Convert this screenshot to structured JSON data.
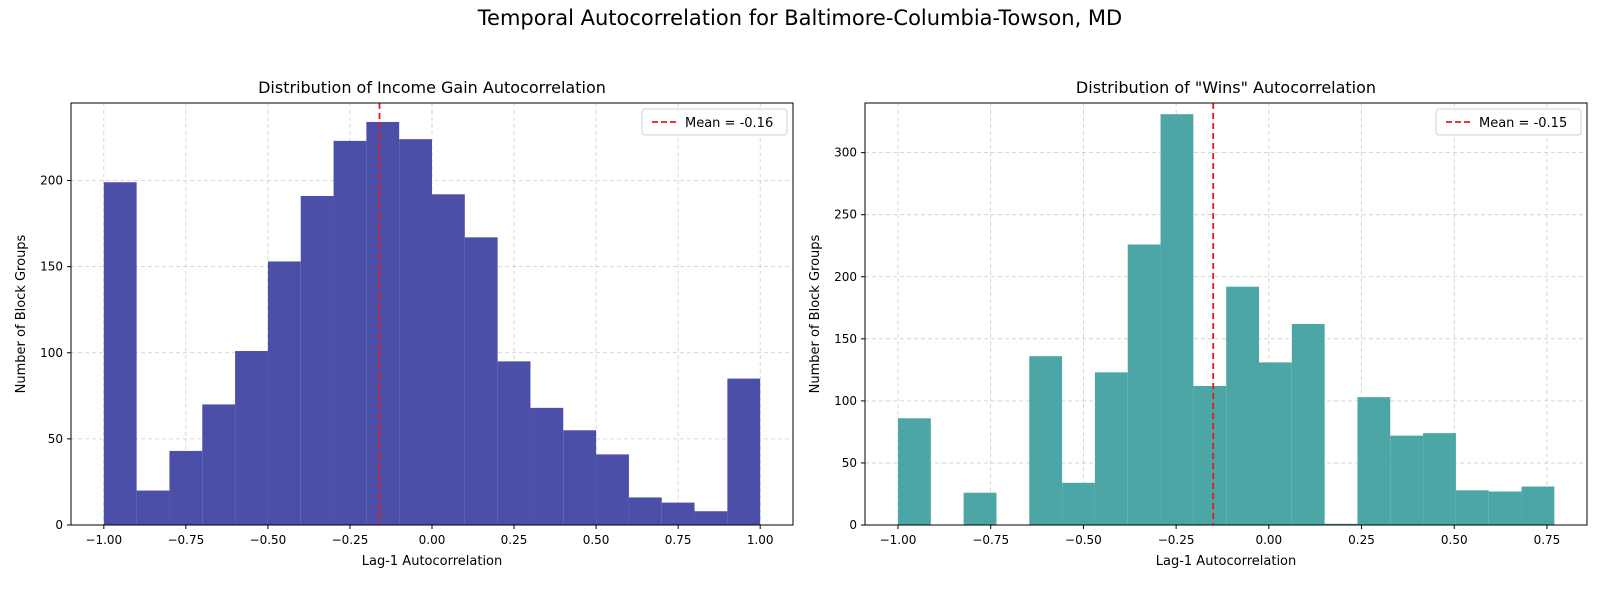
{
  "figure": {
    "title": "Temporal Autocorrelation for Baltimore-Columbia-Towson, MD"
  },
  "chart_data": [
    {
      "type": "bar",
      "title": "Distribution of Income Gain Autocorrelation",
      "xlabel": "Lag-1 Autocorrelation",
      "ylabel": "Number of Block Groups",
      "color": "#4b4fa7",
      "xlim": [
        -1.1,
        1.1
      ],
      "ylim": [
        0,
        245
      ],
      "xticks": [
        -1.0,
        -0.75,
        -0.5,
        -0.25,
        0.0,
        0.25,
        0.5,
        0.75,
        1.0
      ],
      "xtick_labels": [
        "−1.00",
        "−0.75",
        "−0.50",
        "−0.25",
        "0.00",
        "0.25",
        "0.50",
        "0.75",
        "1.00"
      ],
      "yticks": [
        0,
        50,
        100,
        150,
        200
      ],
      "ytick_labels": [
        "0",
        "50",
        "100",
        "150",
        "200"
      ],
      "grid": true,
      "legend_position": "top-right",
      "bin_edges": [
        -1.0,
        -0.9,
        -0.8,
        -0.7,
        -0.6,
        -0.5,
        -0.4,
        -0.3,
        -0.2,
        -0.1,
        0.0,
        0.1,
        0.2,
        0.3,
        0.4,
        0.5,
        0.6,
        0.7,
        0.8,
        0.9,
        1.0
      ],
      "counts": [
        199,
        20,
        43,
        70,
        101,
        153,
        191,
        223,
        234,
        224,
        192,
        167,
        95,
        68,
        55,
        41,
        16,
        13,
        8,
        85
      ],
      "mean": -0.16,
      "mean_label": "Mean = -0.16"
    },
    {
      "type": "bar",
      "title": "Distribution of \"Wins\" Autocorrelation",
      "xlabel": "Lag-1 Autocorrelation",
      "ylabel": "Number of Block Groups",
      "color": "#4ca6a6",
      "xlim": [
        -1.089,
        0.858
      ],
      "ylim": [
        0,
        340
      ],
      "xticks": [
        -1.0,
        -0.75,
        -0.5,
        -0.25,
        0.0,
        0.25,
        0.5,
        0.75
      ],
      "xtick_labels": [
        "−1.00",
        "−0.75",
        "−0.50",
        "−0.25",
        "0.00",
        "0.25",
        "0.50",
        "0.75"
      ],
      "yticks": [
        0,
        50,
        100,
        150,
        200,
        250,
        300
      ],
      "ytick_labels": [
        "0",
        "50",
        "100",
        "150",
        "200",
        "250",
        "300"
      ],
      "grid": true,
      "legend_position": "top-right",
      "bin_edges": [
        -1.0,
        -0.9115,
        -0.823,
        -0.7345,
        -0.646,
        -0.5575,
        -0.469,
        -0.3805,
        -0.292,
        -0.2035,
        -0.115,
        -0.0265,
        0.062,
        0.1505,
        0.239,
        0.3275,
        0.416,
        0.5045,
        0.593,
        0.6815,
        0.77
      ],
      "counts": [
        86,
        0,
        26,
        0,
        136,
        34,
        123,
        226,
        331,
        112,
        192,
        131,
        162,
        1,
        103,
        72,
        74,
        28,
        27,
        31
      ],
      "mean": -0.15,
      "mean_label": "Mean = -0.15"
    }
  ]
}
